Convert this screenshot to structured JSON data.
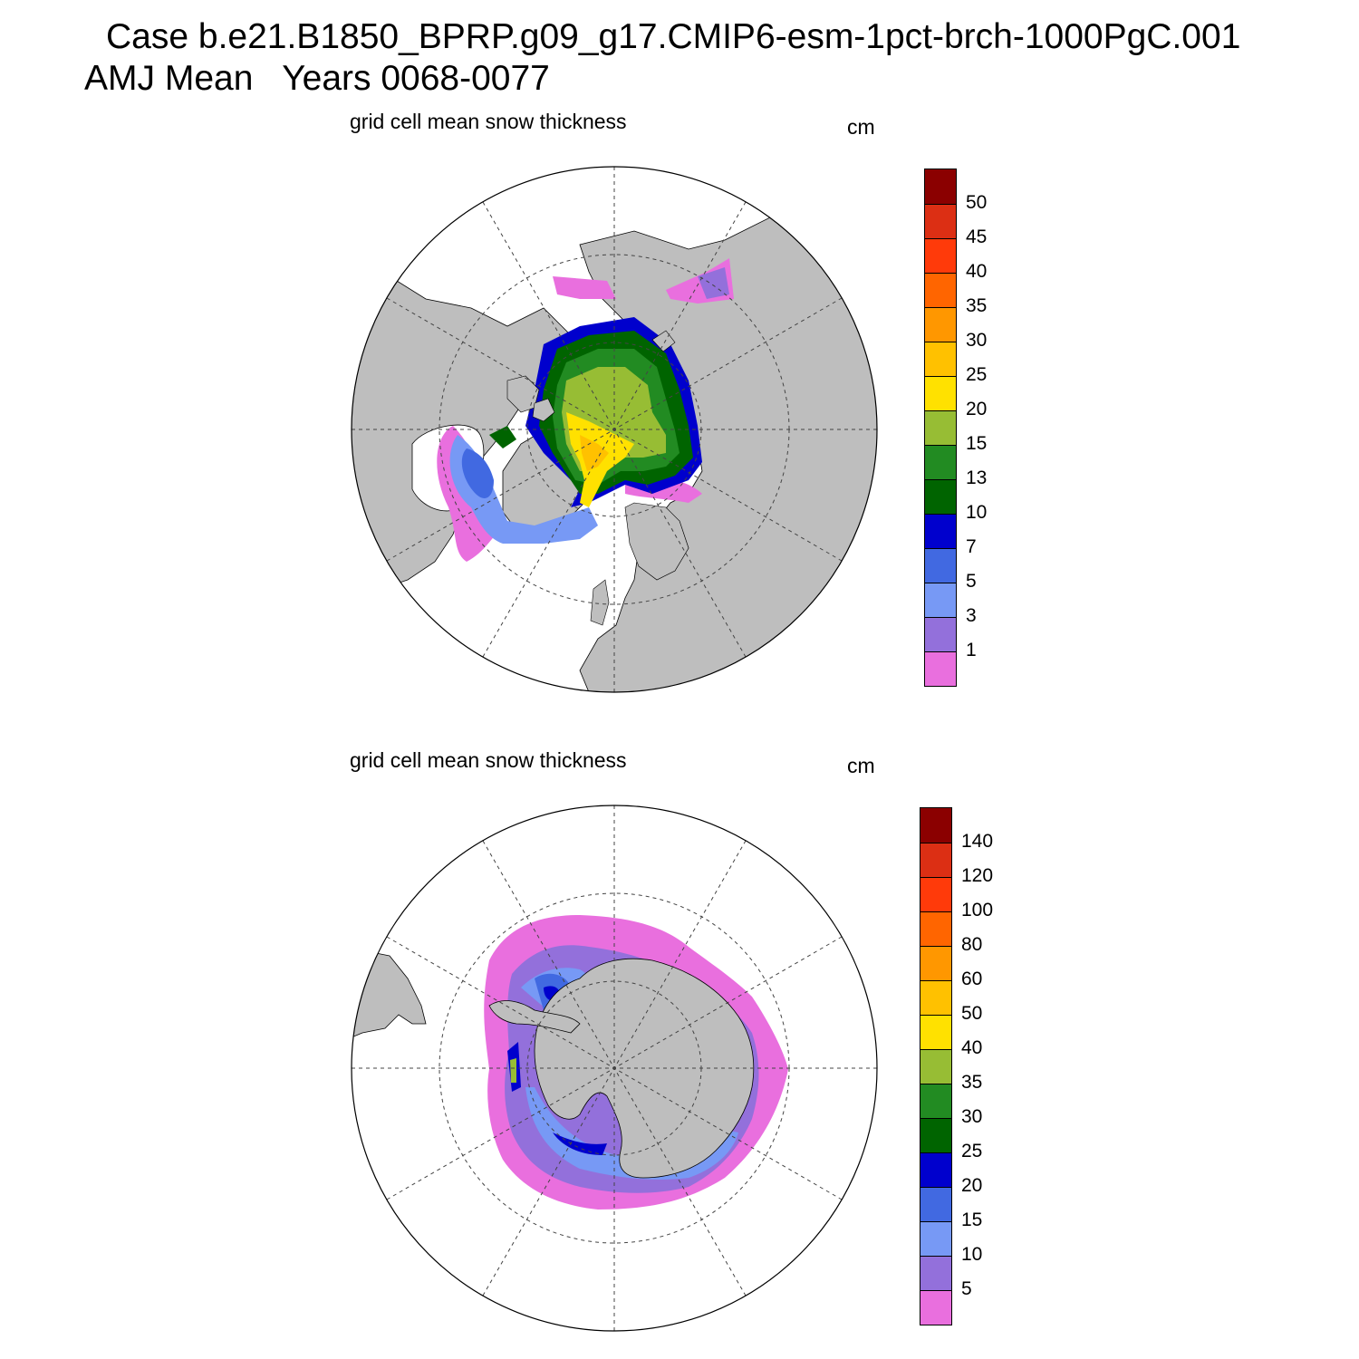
{
  "header": {
    "case_line": "Case b.e21.B1850_BPRP.g09_g17.CMIP6-esm-1pct-brch-1000PgC.001",
    "period_line": "AMJ Mean   Years 0068-0077"
  },
  "panels": [
    {
      "subtitle": "grid cell mean snow thickness",
      "units": "cm",
      "hemisphere": "north",
      "colorbar": {
        "labels": [
          "50",
          "45",
          "40",
          "35",
          "30",
          "25",
          "20",
          "15",
          "13",
          "10",
          "7",
          "5",
          "3",
          "1"
        ],
        "colors": [
          "#8B0000",
          "#DC2F14",
          "#FF3A0A",
          "#FF6500",
          "#FF9700",
          "#FFC100",
          "#FFE100",
          "#97BD34",
          "#228B22",
          "#006400",
          "#0000CD",
          "#4169E1",
          "#7799F5",
          "#9370DB",
          "#E96FDE"
        ]
      }
    },
    {
      "subtitle": "grid cell mean snow thickness",
      "units": "cm",
      "hemisphere": "south",
      "colorbar": {
        "labels": [
          "140",
          "120",
          "100",
          "80",
          "60",
          "50",
          "40",
          "35",
          "30",
          "25",
          "20",
          "15",
          "10",
          "5"
        ],
        "colors": [
          "#8B0000",
          "#DC2F14",
          "#FF3A0A",
          "#FF6500",
          "#FF9700",
          "#FFC100",
          "#FFE100",
          "#97BD34",
          "#228B22",
          "#006400",
          "#0000CD",
          "#4169E1",
          "#7799F5",
          "#9370DB",
          "#E96FDE"
        ]
      }
    }
  ]
}
